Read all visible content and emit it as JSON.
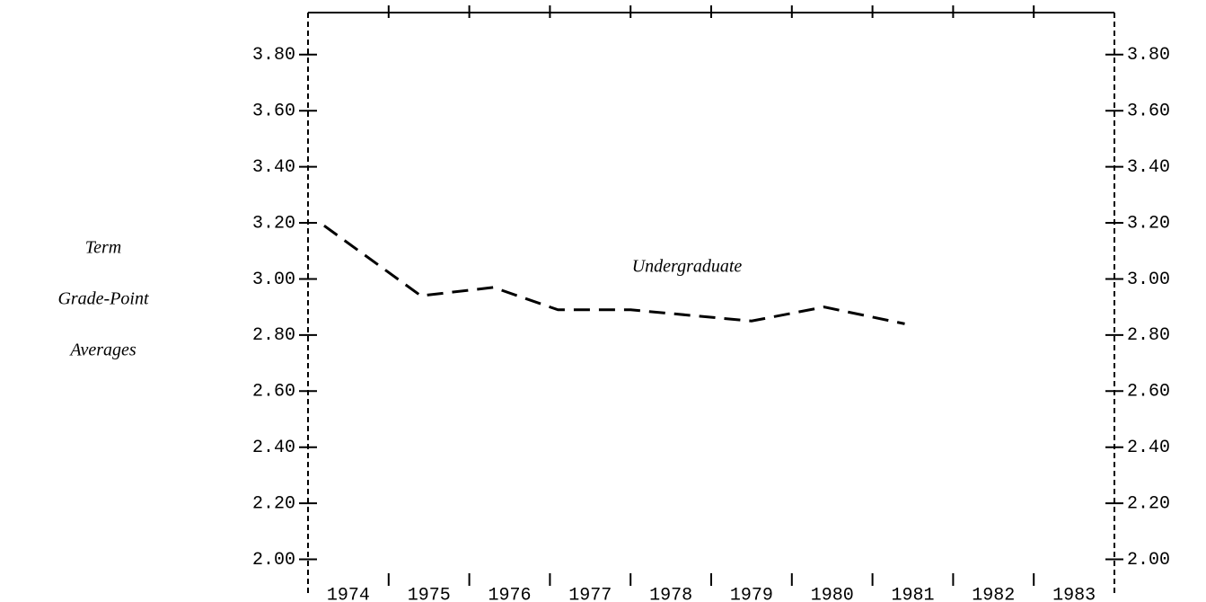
{
  "chart_data": {
    "type": "line",
    "y_label_lines": [
      "Term",
      "Grade-Point",
      "Averages"
    ],
    "xlim": [
      1973.5,
      1983.5
    ],
    "xticks": [
      1974,
      1975,
      1976,
      1977,
      1978,
      1979,
      1980,
      1981,
      1982,
      1983
    ],
    "ylim": [
      1.88,
      3.95
    ],
    "yticks": [
      {
        "value": 2.0,
        "label": "2.00"
      },
      {
        "value": 2.2,
        "label": "2.20"
      },
      {
        "value": 2.4,
        "label": "2.40"
      },
      {
        "value": 2.6,
        "label": "2.60"
      },
      {
        "value": 2.8,
        "label": "2.80"
      },
      {
        "value": 3.0,
        "label": "3.00"
      },
      {
        "value": 3.2,
        "label": "3.20"
      },
      {
        "value": 3.4,
        "label": "3.40"
      },
      {
        "value": 3.6,
        "label": "3.60"
      },
      {
        "value": 3.8,
        "label": "3.80"
      }
    ],
    "series": [
      {
        "name": "Undergraduate",
        "color": "#000000",
        "x": [
          1973.7,
          1974.9,
          1975.8,
          1976.6,
          1977.5,
          1979.0,
          1979.9,
          1980.9
        ],
        "values": [
          3.19,
          2.94,
          2.97,
          2.89,
          2.89,
          2.85,
          2.9,
          2.84
        ]
      }
    ]
  }
}
